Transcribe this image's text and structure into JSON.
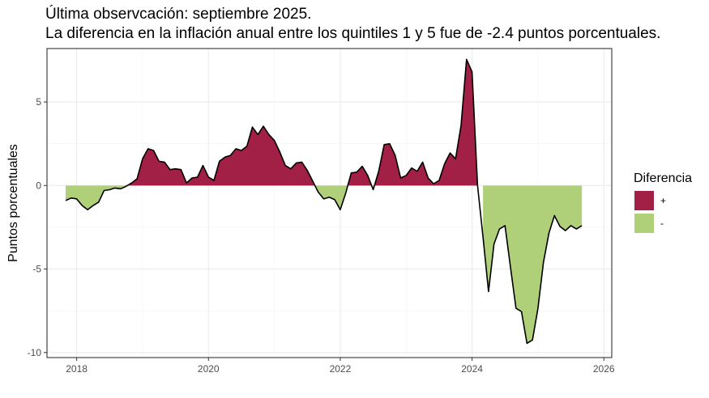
{
  "chart_data": {
    "type": "area",
    "title": "Última observcación: septiembre 2025.",
    "subtitle": "La diferencia en la inflación anual entre los quintiles 1 y 5 fue de -2.4 puntos porcentuales.",
    "xlabel": "",
    "ylabel": "Puntos porcentuales",
    "xlim": [
      2017.55,
      2026.12
    ],
    "ylim": [
      -10.3,
      8.2
    ],
    "x_ticks": [
      2018,
      2020,
      2022,
      2024,
      2026
    ],
    "x_tick_labels": [
      "2018",
      "2020",
      "2022",
      "2024",
      "2026"
    ],
    "y_ticks": [
      -10,
      -5,
      0,
      5
    ],
    "y_tick_labels": [
      "-10",
      "-5",
      "0",
      "5"
    ],
    "grid": true,
    "legend": {
      "title": "Diferencia",
      "position": "right",
      "items": [
        {
          "label": "+",
          "color": "#a21f45"
        },
        {
          "label": "-",
          "color": "#afcf78"
        }
      ]
    },
    "colors": {
      "positive": "#a21f45",
      "negative": "#afcf78",
      "line": "#000000"
    },
    "series": [
      {
        "name": "Diferencia",
        "start": {
          "year": 2017,
          "month": 11
        },
        "frequency": "monthly",
        "values": [
          -0.9,
          -0.75,
          -0.8,
          -1.2,
          -1.45,
          -1.2,
          -1.0,
          -0.3,
          -0.25,
          -0.15,
          -0.2,
          -0.05,
          0.15,
          0.4,
          1.6,
          2.2,
          2.1,
          1.45,
          1.4,
          0.95,
          1.0,
          0.95,
          0.15,
          0.45,
          0.5,
          1.2,
          0.5,
          0.3,
          1.45,
          1.7,
          1.8,
          2.2,
          2.1,
          2.35,
          3.5,
          3.05,
          3.55,
          3.05,
          2.7,
          2.0,
          1.2,
          1.0,
          1.35,
          1.4,
          0.9,
          0.25,
          -0.4,
          -0.8,
          -0.7,
          -0.85,
          -1.45,
          -0.45,
          0.75,
          0.8,
          1.15,
          0.6,
          -0.25,
          0.85,
          2.45,
          2.5,
          1.8,
          0.45,
          0.6,
          1.05,
          0.85,
          1.4,
          0.45,
          0.1,
          0.3,
          1.3,
          1.95,
          1.6,
          3.6,
          7.55,
          6.8,
          0.0,
          -3.1,
          -6.35,
          -3.5,
          -2.6,
          -2.4,
          -4.9,
          -7.35,
          -7.55,
          -9.45,
          -9.25,
          -7.35,
          -4.6,
          -2.85,
          -1.8,
          -2.45,
          -2.7,
          -2.4,
          -2.6,
          -2.4
        ]
      }
    ]
  }
}
